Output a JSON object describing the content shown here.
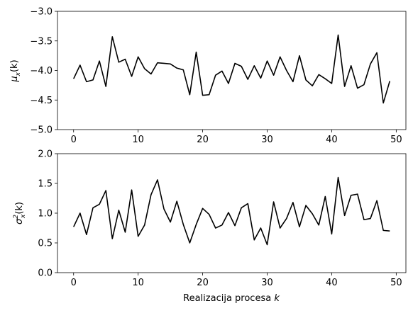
{
  "chart_data": [
    {
      "type": "line",
      "ylabel": "μx(k)",
      "ylabel_parts": {
        "base": "μ",
        "sub": "x",
        "tail": "(k)"
      },
      "xlabel": "",
      "xlim": [
        -2.5,
        51.5
      ],
      "ylim": [
        -5.0,
        -3.0
      ],
      "xticks": [
        0,
        10,
        20,
        30,
        40,
        50
      ],
      "xtick_labels": [
        "0",
        "10",
        "20",
        "30",
        "40",
        "50"
      ],
      "yticks": [
        -5.0,
        -4.5,
        -4.0,
        -3.5,
        -3.0
      ],
      "ytick_labels": [
        "−5.0",
        "−4.5",
        "−4.0",
        "−3.5",
        "−3.0"
      ],
      "grid": false,
      "color": "#000000",
      "x": [
        0,
        1,
        2,
        3,
        4,
        5,
        6,
        7,
        8,
        9,
        10,
        11,
        12,
        13,
        14,
        15,
        16,
        17,
        18,
        19,
        20,
        21,
        22,
        23,
        24,
        25,
        26,
        27,
        28,
        29,
        30,
        31,
        32,
        33,
        34,
        35,
        36,
        37,
        38,
        39,
        40,
        41,
        42,
        43,
        44,
        45,
        46,
        47,
        48,
        49
      ],
      "values": [
        -4.14,
        -3.91,
        -4.19,
        -4.16,
        -3.84,
        -4.27,
        -3.43,
        -3.86,
        -3.81,
        -4.1,
        -3.77,
        -3.97,
        -4.06,
        -3.87,
        -3.88,
        -3.89,
        -3.96,
        -3.99,
        -4.41,
        -3.69,
        -4.42,
        -4.41,
        -4.08,
        -4.01,
        -4.22,
        -3.88,
        -3.93,
        -4.15,
        -3.92,
        -4.13,
        -3.84,
        -4.08,
        -3.77,
        -4.0,
        -4.19,
        -3.75,
        -4.16,
        -4.26,
        -4.07,
        -4.14,
        -4.22,
        -3.4,
        -4.27,
        -3.92,
        -4.3,
        -4.24,
        -3.89,
        -3.7,
        -4.55,
        -4.18
      ]
    },
    {
      "type": "line",
      "ylabel": "σx²(k)",
      "ylabel_parts": {
        "base": "σ",
        "sub": "x",
        "sup": "2",
        "tail": "(k)"
      },
      "xlabel": "Realizacija procesa k",
      "xlabel_parts": {
        "text": "Realizacija procesa ",
        "var": "k"
      },
      "xlim": [
        -2.5,
        51.5
      ],
      "ylim": [
        0.0,
        2.0
      ],
      "xticks": [
        0,
        10,
        20,
        30,
        40,
        50
      ],
      "xtick_labels": [
        "0",
        "10",
        "20",
        "30",
        "40",
        "50"
      ],
      "yticks": [
        0.0,
        0.5,
        1.0,
        1.5,
        2.0
      ],
      "ytick_labels": [
        "0.0",
        "0.5",
        "1.0",
        "1.5",
        "2.0"
      ],
      "grid": false,
      "color": "#000000",
      "x": [
        0,
        1,
        2,
        3,
        4,
        5,
        6,
        7,
        8,
        9,
        10,
        11,
        12,
        13,
        14,
        15,
        16,
        17,
        18,
        19,
        20,
        21,
        22,
        23,
        24,
        25,
        26,
        27,
        28,
        29,
        30,
        31,
        32,
        33,
        34,
        35,
        36,
        37,
        38,
        39,
        40,
        41,
        42,
        43,
        44,
        45,
        46,
        47,
        48,
        49
      ],
      "values": [
        0.77,
        1.0,
        0.64,
        1.09,
        1.15,
        1.38,
        0.57,
        1.05,
        0.68,
        1.39,
        0.61,
        0.8,
        1.31,
        1.56,
        1.07,
        0.85,
        1.2,
        0.81,
        0.5,
        0.81,
        1.08,
        0.98,
        0.75,
        0.8,
        1.01,
        0.79,
        1.09,
        1.16,
        0.55,
        0.75,
        0.47,
        1.19,
        0.75,
        0.91,
        1.18,
        0.77,
        1.13,
        0.99,
        0.8,
        1.28,
        0.65,
        1.6,
        0.96,
        1.3,
        1.32,
        0.89,
        0.91,
        1.21,
        0.71,
        0.7
      ]
    }
  ]
}
